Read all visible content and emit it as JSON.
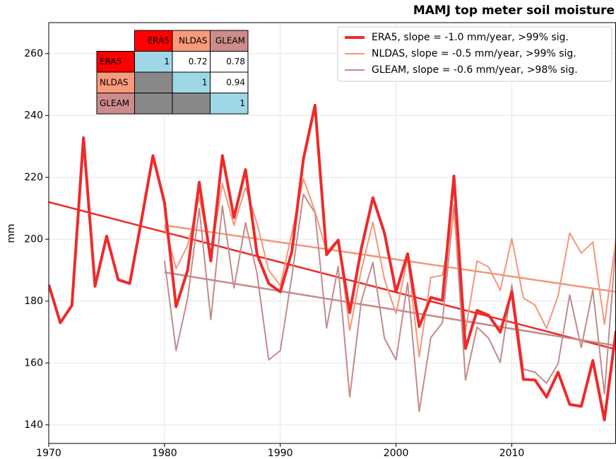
{
  "chart_data": {
    "type": "line",
    "title": "MAMJ top meter soil moisture",
    "y_label": "mm",
    "x": [
      1970,
      1971,
      1972,
      1973,
      1974,
      1975,
      1976,
      1977,
      1978,
      1979,
      1980,
      1981,
      1982,
      1983,
      1984,
      1985,
      1986,
      1987,
      1988,
      1989,
      1990,
      1991,
      1992,
      1993,
      1994,
      1995,
      1996,
      1997,
      1998,
      1999,
      2000,
      2001,
      2002,
      2003,
      2004,
      2005,
      2006,
      2007,
      2008,
      2009,
      2010,
      2011,
      2012,
      2013,
      2014,
      2015,
      2016,
      2017,
      2018,
      2019
    ],
    "xlim": [
      1970,
      2019
    ],
    "xticks": [
      1970,
      1980,
      1990,
      2000,
      2010
    ],
    "ylim": [
      134,
      270
    ],
    "yticks": [
      140,
      160,
      180,
      200,
      220,
      240,
      260
    ],
    "grid": true,
    "legend": "upper right",
    "series": [
      {
        "name": "ERA5, slope = -1.0 mm/year, >99% sig.",
        "color": "#ee2a2a",
        "line_width": 4,
        "values": [
          185.3,
          173,
          178.6,
          232.8,
          184.8,
          201,
          186.9,
          185.7,
          206,
          227,
          211.8,
          178.2,
          190,
          218.4,
          193,
          227,
          207,
          222.5,
          195,
          185.7,
          183,
          196,
          226,
          243.3,
          195,
          199.7,
          176.3,
          197,
          213.4,
          202,
          183,
          195.3,
          171.8,
          181.2,
          180.2,
          220.4,
          164.7,
          177,
          175.4,
          170,
          183,
          154.7,
          154.5,
          149,
          157,
          146.6,
          146,
          160.8,
          141.6,
          170.4
        ],
        "trend": {
          "x": [
            1970,
            2019
          ],
          "values": [
            212,
            164.4
          ]
        }
      },
      {
        "name": "NLDAS, slope = -0.5 mm/year, >99% sig.",
        "color": "#f4967a",
        "line_width": 2,
        "values": [
          null,
          null,
          null,
          null,
          null,
          null,
          null,
          null,
          null,
          null,
          204.5,
          190.5,
          198,
          213.5,
          195,
          218,
          204.5,
          216.7,
          205,
          190,
          185,
          202,
          219.5,
          209,
          196,
          200,
          170.5,
          190,
          205.5,
          187,
          176,
          194,
          162,
          187.7,
          188.3,
          208,
          170.5,
          193,
          191,
          183.5,
          200.2,
          181,
          178.7,
          171.2,
          181.7,
          202,
          195.5,
          199.1,
          172.5,
          200
        ],
        "trend": {
          "x": [
            1980,
            2019
          ],
          "values": [
            204.5,
            183
          ]
        }
      },
      {
        "name": "GLEAM, slope = -0.6 mm/year, >98% sig.",
        "color": "#c48a8a",
        "line_width": 2,
        "values": [
          null,
          null,
          null,
          null,
          null,
          null,
          null,
          null,
          null,
          null,
          193,
          164,
          181,
          210,
          174,
          210.8,
          184.2,
          205.3,
          188.7,
          161,
          164,
          188,
          214.5,
          208.5,
          171.3,
          191.2,
          149,
          180,
          192.5,
          168,
          161,
          186,
          144.3,
          168.2,
          173,
          211,
          154.5,
          171.6,
          168,
          160.2,
          185.2,
          158,
          157,
          153.5,
          159.8,
          182,
          165,
          183.6,
          150,
          199
        ],
        "trend": {
          "x": [
            1980,
            2019
          ],
          "values": [
            189.3,
            165.6
          ]
        }
      }
    ],
    "inset_table": {
      "columns": [
        "ERA5",
        "NLDAS",
        "GLEAM"
      ],
      "header_colors": [
        "#ff0000",
        "#fa9a7a",
        "#cc8c8c"
      ],
      "diagonal_color": "#9ed8e6",
      "lower_color": "#888888",
      "upper_color": "#ffffff",
      "rows": [
        {
          "label": "ERA5",
          "values": [
            1,
            0.72,
            0.78
          ]
        },
        {
          "label": "NLDAS",
          "values": [
            null,
            1,
            0.94
          ]
        },
        {
          "label": "GLEAM",
          "values": [
            null,
            null,
            1
          ]
        }
      ]
    }
  }
}
